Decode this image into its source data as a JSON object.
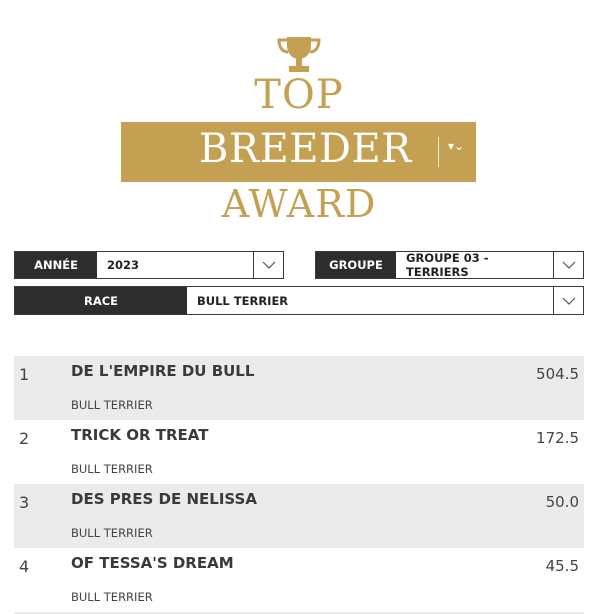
{
  "header": {
    "title_top": "TOP",
    "title_main": "BREEDER",
    "title_bottom": "AWARD",
    "trophy_icon": "trophy-icon",
    "accent_color": "#c4a052"
  },
  "filters": {
    "annee": {
      "label": "ANNÉE",
      "value": "2023"
    },
    "groupe": {
      "label": "GROUPE",
      "value": "GROUPE 03 - TERRIERS"
    },
    "race": {
      "label": "RACE",
      "value": "BULL TERRIER"
    }
  },
  "rankings": [
    {
      "rank": "1",
      "name": "DE L'EMPIRE DU BULL",
      "breed": "BULL TERRIER",
      "score": "504.5"
    },
    {
      "rank": "2",
      "name": "TRICK OR TREAT",
      "breed": "BULL TERRIER",
      "score": "172.5"
    },
    {
      "rank": "3",
      "name": "DES PRES DE NELISSA",
      "breed": "BULL TERRIER",
      "score": "50.0"
    },
    {
      "rank": "4",
      "name": "OF TESSA'S DREAM",
      "breed": "BULL TERRIER",
      "score": "45.5"
    }
  ]
}
